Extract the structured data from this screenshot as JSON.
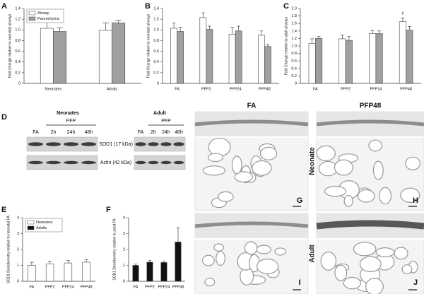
{
  "chart_data": [
    {
      "type": "bar",
      "panel": "A",
      "ylabel": "Fold Change relative to neonatal airways",
      "categories": [
        "Neonates",
        "Adults"
      ],
      "series": [
        {
          "name": "Airway",
          "color": "#ffffff",
          "values": [
            1.03,
            0.99
          ],
          "errors": [
            0.12,
            0.14
          ]
        },
        {
          "name": "Parenchyma",
          "color": "#a0a0a0",
          "values": [
            0.97,
            1.13
          ],
          "errors": [
            0.07,
            0.05
          ]
        }
      ],
      "ylim": [
        0,
        1.4
      ],
      "yticks": [
        0,
        0.2,
        0.4,
        0.6,
        0.8,
        {
          "value": 1,
          "label": "1.0"
        },
        1.2,
        1.4
      ],
      "legend": "upper left"
    },
    {
      "type": "bar",
      "panel": "B",
      "ylabel": "Fold Change relative to neonatal airways",
      "categories": [
        "FA",
        "PFP2",
        "PFP24",
        "PFP48"
      ],
      "series": [
        {
          "color": "#ffffff",
          "values": [
            1.03,
            1.23,
            0.92,
            0.9
          ],
          "errors": [
            0.1,
            0.09,
            0.13,
            0.08
          ]
        },
        {
          "color": "#a0a0a0",
          "values": [
            0.97,
            1.01,
            0.98,
            0.69
          ],
          "errors": [
            0.08,
            0.06,
            0.09,
            0.04
          ]
        }
      ],
      "ylim": [
        0,
        1.4
      ],
      "yticks": [
        0,
        0.2,
        0.4,
        0.6,
        0.8,
        {
          "value": 1,
          "label": "1.0"
        },
        1.2,
        1.4
      ]
    },
    {
      "type": "bar",
      "panel": "C",
      "ylabel": "Fold Change relative to adult airways",
      "categories": [
        "FA",
        "PFP2",
        "PFP24",
        "PFP48"
      ],
      "series": [
        {
          "color": "#ffffff",
          "values": [
            1.07,
            1.19,
            1.33,
            1.65
          ],
          "errors": [
            0.12,
            0.1,
            0.08,
            0.1
          ]
        },
        {
          "color": "#a0a0a0",
          "values": [
            1.2,
            1.15,
            1.33,
            1.42
          ],
          "errors": [
            0.05,
            0.1,
            0.07,
            0.1
          ]
        }
      ],
      "annotation": "‡",
      "ylim": [
        0,
        2
      ],
      "yticks": [
        0,
        0.2,
        0.4,
        0.6,
        0.8,
        {
          "value": 1,
          "label": "1.0"
        },
        1.2,
        1.4,
        1.6,
        1.8,
        {
          "value": 2,
          "label": "2.0"
        }
      ]
    },
    {
      "type": "bar",
      "panel": "E",
      "ylabel": "SOD1 Densitometry relative to neonatal FA",
      "categories": [
        "FA",
        "PFP2",
        "PFP24",
        "PFP48"
      ],
      "series": [
        {
          "name": "Neonates",
          "color": "#ffffff",
          "values": [
            1.0,
            1.1,
            1.15,
            1.2
          ],
          "errors": [
            0.2,
            0.15,
            0.15,
            0.15
          ]
        },
        {
          "name": "Adults",
          "color": "#111111",
          "values": [
            null,
            null,
            null,
            null
          ],
          "errors": [
            null,
            null,
            null,
            null
          ]
        }
      ],
      "ylim": [
        0,
        4
      ],
      "yticks": [
        0,
        1,
        2,
        3,
        4
      ],
      "legend": "upper left"
    },
    {
      "type": "bar",
      "panel": "F",
      "ylabel": "SOD1 Densitometry relative to adult FA",
      "categories": [
        "FA",
        "PFP2",
        "PFP24",
        "PFP48"
      ],
      "series": [
        {
          "color": "#111111",
          "values": [
            1.0,
            1.2,
            1.18,
            2.47
          ],
          "errors": [
            0.08,
            0.12,
            0.08,
            0.9
          ]
        }
      ],
      "ylim": [
        0,
        4
      ],
      "yticks": [
        0,
        1,
        2,
        3,
        4
      ]
    }
  ],
  "blot": {
    "panel": "D",
    "groups": [
      {
        "title": "Neonates",
        "treatment": "PFP",
        "lanes": [
          "FA",
          "2h",
          "24h",
          "48h"
        ]
      },
      {
        "title": "Adult",
        "treatment": "PFP",
        "lanes": [
          "FA",
          "2h",
          "24h",
          "48h"
        ]
      }
    ],
    "bands": [
      "SOD1 (17 kDa)",
      "Actin (42 kDa)"
    ]
  },
  "histology": {
    "columns": [
      "FA",
      "PFP48"
    ],
    "rows": [
      "Neonate",
      "Adult"
    ],
    "panels": [
      "G",
      "H",
      "I",
      "J"
    ]
  }
}
